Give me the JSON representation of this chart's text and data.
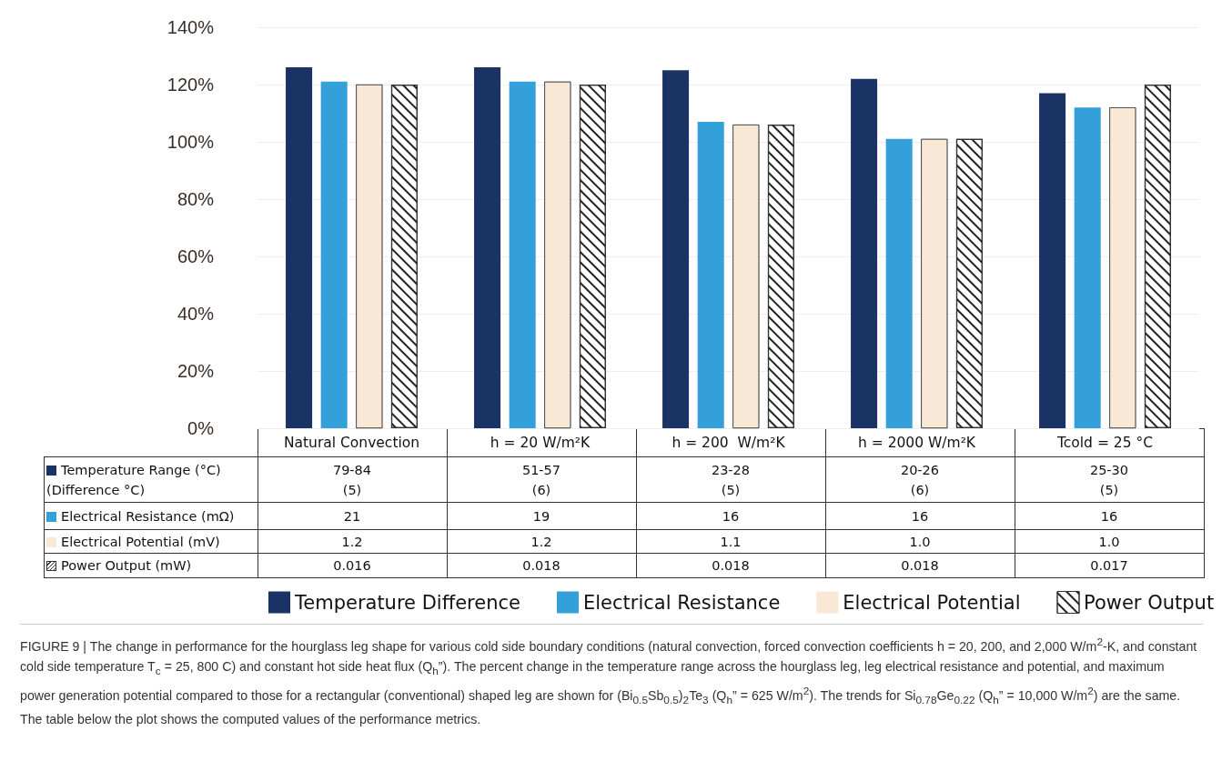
{
  "chart_data": {
    "type": "bar",
    "categories": [
      "Natural Convection",
      "h = 20 W/m²K",
      "h = 200  W/m²K",
      "h = 2000 W/m²K",
      "Tcold = 25 °C"
    ],
    "series": [
      {
        "name": "Temperature Difference",
        "color": "#1b3264",
        "values": [
          126,
          126,
          125,
          122,
          117
        ]
      },
      {
        "name": "Electrical Resistance",
        "color": "#33a0d9",
        "values": [
          121,
          121,
          107,
          101,
          112
        ]
      },
      {
        "name": "Electrical Potential",
        "color": "#f9e8d6",
        "values": [
          120,
          121,
          106,
          101,
          112
        ]
      },
      {
        "name": "Power Output",
        "color": "#ffffff",
        "values": [
          120,
          120,
          106,
          101,
          120
        ]
      }
    ],
    "ylim": [
      0,
      140
    ],
    "yticks": [
      {
        "value": 0,
        "label": "0%"
      },
      {
        "value": 20,
        "label": "20%"
      },
      {
        "value": 40,
        "label": "40%"
      },
      {
        "value": 60,
        "label": "60%"
      },
      {
        "value": 80,
        "label": "80%"
      },
      {
        "value": 100,
        "label": "100%"
      },
      {
        "value": 120,
        "label": "120%"
      },
      {
        "value": 140,
        "label": "140%"
      }
    ],
    "grid": "y",
    "legend": "bottom",
    "annotations": [
      "Temperature Range (°C)\n(Difference °C)",
      "79-84\n(5)",
      "51-57\n(6)",
      "23-28\n(5)",
      "20-26\n(6)",
      "25-30\n(5)",
      "Electrical Resistance (mΩ)",
      "21",
      "19",
      "16",
      "16",
      "16",
      "Electrical Potential (mV)",
      "1.2",
      "1.2",
      "1.1",
      "1.0",
      "1.0",
      "Power Output (mW)",
      "0.016",
      "0.018",
      "0.018",
      "0.018",
      "0.017",
      "FIGURE 9 | The change in performance for the hourglass leg shape for various cold side boundary conditions (natural convection, forced convection coefficients h = 20, 200, and 2,000 W/m$^{2}$-K, and constant cold side temperature T$_{c}$ = 25, 800 C) and constant hot side heat flux (Q$_{h}$”). The percent change in the temperature range across the hourglass leg, leg electrical resistance and potential, and maximum power generation potential compared to those for a rectangular (conventional) shaped leg are shown for (Bi$_{0.5}$Sb$_{0.5}$)$_{2}$Te$_{3}$ (Q$_{h}$” = 625 W/m$^{2}$). The trends for Si$_{0.78}$Ge$_{0.22}$ (Q$_{h}$” = 10,000 W/m$^{2}$) are the same. The table below the plot shows the computed values of the performance metrics."
    ]
  }
}
